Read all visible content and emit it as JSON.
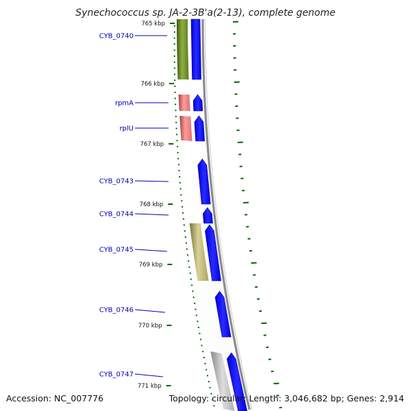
{
  "title": "Synechococcus sp. JA-2-3B'a(2-13), complete genome",
  "accession": "Accession: NC_007776",
  "topology": "Topology: circular; Length: 3,046,682 bp; Genes: 2,914",
  "colors": {
    "forward_strand": "#0000ff",
    "tick_green": "#006600",
    "label_blue": "#0000b4",
    "backbone": "#8c8c8c",
    "cog_green": "#6b8e23",
    "cog_red": "#f08080",
    "cog_khaki": "#bdb76b",
    "cog_gray": "#b4b4b4"
  },
  "scale_ticks": [
    {
      "label": "765 kbp"
    },
    {
      "label": "766 kbp"
    },
    {
      "label": "767 kbp"
    },
    {
      "label": "768 kbp"
    },
    {
      "label": "769 kbp"
    },
    {
      "label": "770 kbp"
    },
    {
      "label": "771 kbp"
    }
  ],
  "genes": [
    {
      "label": "CYB_0740"
    },
    {
      "label": "rpmA"
    },
    {
      "label": "rplU"
    },
    {
      "label": "CYB_0743"
    },
    {
      "label": "CYB_0744"
    },
    {
      "label": "CYB_0745"
    },
    {
      "label": "CYB_0746"
    },
    {
      "label": "CYB_0747"
    }
  ]
}
